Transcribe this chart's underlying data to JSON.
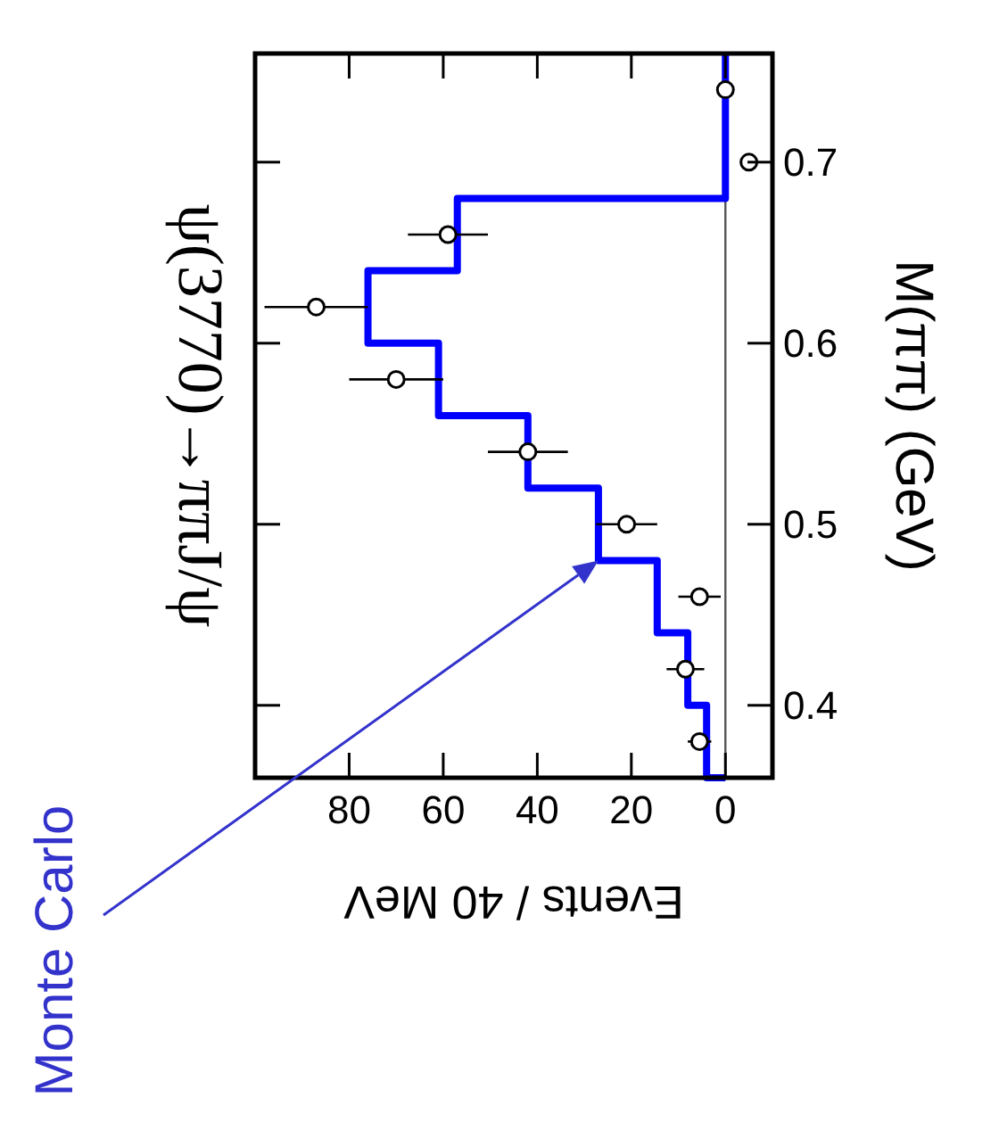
{
  "chart_data": {
    "type": "histogram",
    "orientation": "horizontal",
    "title": "ψ(3770)→ππJ/ψ",
    "xlabel": "Events / 40 MeV",
    "ylabel": "M(ππ) (GeV)",
    "bins": [
      0.36,
      0.4,
      0.44,
      0.48,
      0.52,
      0.56,
      0.6,
      0.64,
      0.68,
      0.72,
      0.76
    ],
    "values": [
      4,
      8,
      14.5,
      27,
      42,
      61,
      76,
      57,
      0,
      0
    ],
    "color": "#0000ff",
    "series": [
      {
        "type": "scatter",
        "color": "#000000",
        "marker": "circle",
        "x": [
          0.38,
          0.42,
          0.46,
          0.5,
          0.54,
          0.58,
          0.62,
          0.66,
          0.7,
          0.74
        ],
        "values": [
          5.5,
          8.5,
          5.5,
          21,
          42,
          70,
          87,
          59,
          -5,
          0
        ],
        "errors": [
          2.5,
          4,
          4.5,
          6.5,
          8.5,
          10,
          11,
          8.5,
          null,
          null
        ]
      }
    ],
    "xlim": [
      100,
      -10
    ],
    "xticks": [
      80,
      60,
      40,
      20,
      0
    ],
    "ylim": [
      0.36,
      0.76
    ],
    "yticks": [
      0.4,
      0.5,
      0.6,
      0.7
    ],
    "ref_lines": [
      {
        "axis": "x",
        "value": 0,
        "color": "#555555"
      }
    ],
    "annotations": [
      "Monte Carlo"
    ],
    "grid": false
  }
}
